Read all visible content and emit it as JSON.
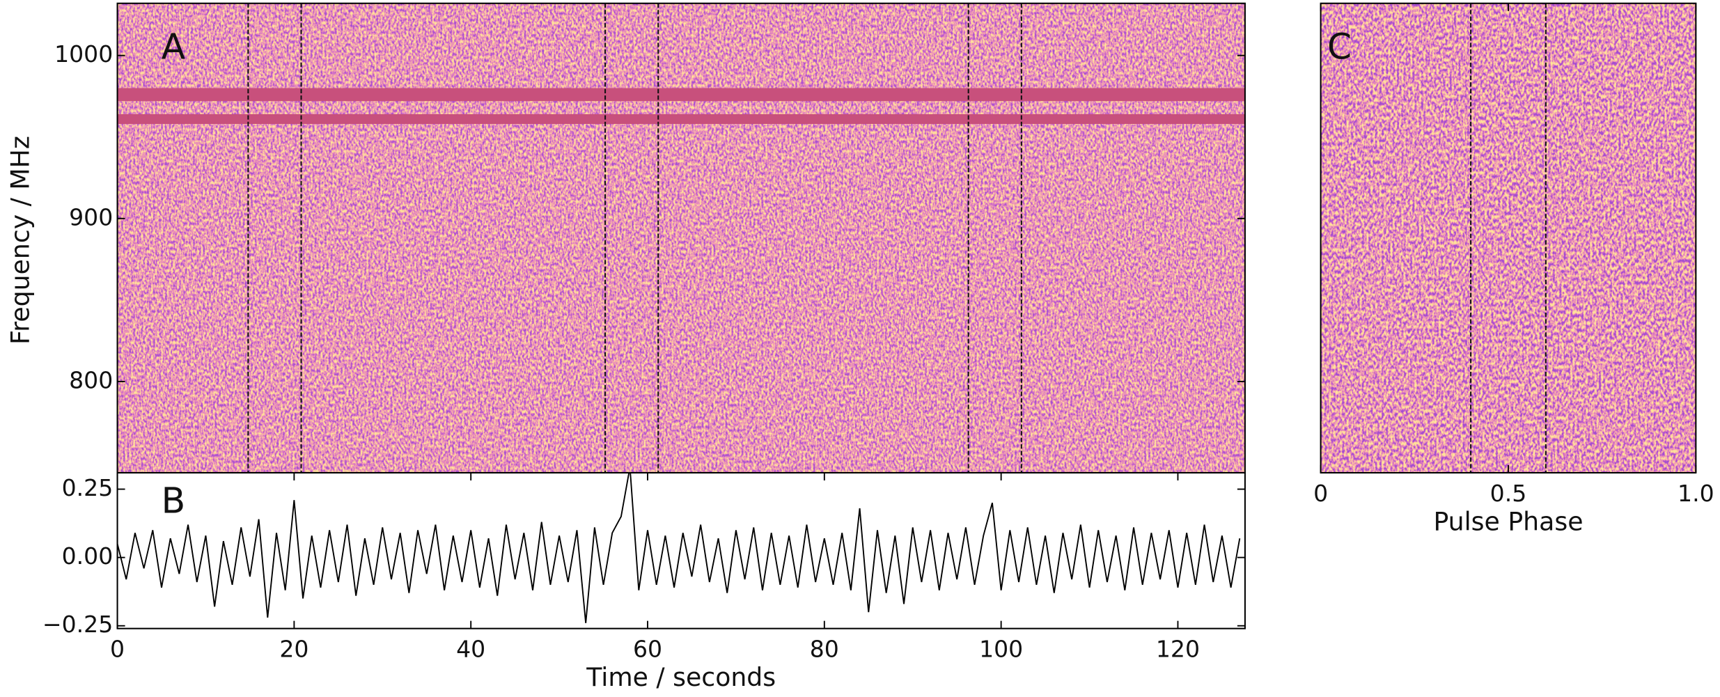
{
  "chart_data": [
    {
      "type": "heatmap",
      "panel": "A",
      "ylabel": "Frequency / MHz",
      "xlim": [
        0,
        127.6
      ],
      "ylim": [
        744,
        1032
      ],
      "yticks": [
        800,
        900,
        1000
      ],
      "markers": [
        14.8,
        20.8,
        55.2,
        61.2,
        96.3,
        102.3
      ],
      "flagged_bands": [
        [
          972,
          980
        ],
        [
          958,
          964
        ]
      ]
    },
    {
      "type": "line",
      "panel": "B",
      "xlabel": "Time / seconds",
      "color": "#000000",
      "xlim": [
        0,
        127.6
      ],
      "ylim": [
        -0.26,
        0.31
      ],
      "xticks": [
        0,
        20,
        40,
        60,
        80,
        100,
        120
      ],
      "yticks": [
        {
          "value": -0.25,
          "label": "−0.25"
        },
        {
          "value": 0,
          "label": "0.00"
        },
        {
          "value": 0.25,
          "label": "0.25"
        }
      ],
      "x": [
        0,
        1,
        2,
        3,
        4,
        5,
        6,
        7,
        8,
        9,
        10,
        11,
        12,
        13,
        14,
        15,
        16,
        17,
        18,
        19,
        20,
        21,
        22,
        23,
        24,
        25,
        26,
        27,
        28,
        29,
        30,
        31,
        32,
        33,
        34,
        35,
        36,
        37,
        38,
        39,
        40,
        41,
        42,
        43,
        44,
        45,
        46,
        47,
        48,
        49,
        50,
        51,
        52,
        53,
        54,
        55,
        56,
        57,
        58,
        59,
        60,
        61,
        62,
        63,
        64,
        65,
        66,
        67,
        68,
        69,
        70,
        71,
        72,
        73,
        74,
        75,
        76,
        77,
        78,
        79,
        80,
        81,
        82,
        83,
        84,
        85,
        86,
        87,
        88,
        89,
        90,
        91,
        92,
        93,
        94,
        95,
        96,
        97,
        98,
        99,
        100,
        101,
        102,
        103,
        104,
        105,
        106,
        107,
        108,
        109,
        110,
        111,
        112,
        113,
        114,
        115,
        116,
        117,
        118,
        119,
        120,
        121,
        122,
        123,
        124,
        125,
        126,
        127
      ],
      "values": [
        0.05,
        -0.08,
        0.09,
        -0.04,
        0.1,
        -0.11,
        0.07,
        -0.06,
        0.12,
        -0.09,
        0.08,
        -0.18,
        0.06,
        -0.1,
        0.11,
        -0.07,
        0.14,
        -0.22,
        0.09,
        -0.12,
        0.21,
        -0.15,
        0.08,
        -0.11,
        0.1,
        -0.09,
        0.12,
        -0.14,
        0.07,
        -0.1,
        0.11,
        -0.08,
        0.09,
        -0.13,
        0.1,
        -0.06,
        0.12,
        -0.12,
        0.08,
        -0.09,
        0.1,
        -0.11,
        0.07,
        -0.14,
        0.12,
        -0.08,
        0.09,
        -0.12,
        0.13,
        -0.1,
        0.08,
        -0.09,
        0.1,
        -0.24,
        0.11,
        -0.1,
        0.09,
        0.15,
        0.33,
        -0.12,
        0.1,
        -0.1,
        0.08,
        -0.11,
        0.09,
        -0.07,
        0.12,
        -0.09,
        0.07,
        -0.13,
        0.1,
        -0.08,
        0.11,
        -0.12,
        0.09,
        -0.1,
        0.08,
        -0.11,
        0.12,
        -0.09,
        0.07,
        -0.1,
        0.09,
        -0.12,
        0.18,
        -0.2,
        0.1,
        -0.13,
        0.08,
        -0.17,
        0.11,
        -0.09,
        0.1,
        -0.12,
        0.09,
        -0.08,
        0.11,
        -0.1,
        0.08,
        0.2,
        -0.12,
        0.1,
        -0.09,
        0.11,
        -0.1,
        0.08,
        -0.13,
        0.09,
        -0.08,
        0.12,
        -0.11,
        0.1,
        -0.09,
        0.08,
        -0.12,
        0.11,
        -0.1,
        0.09,
        -0.08,
        0.1,
        -0.11,
        0.09,
        -0.1,
        0.12,
        -0.09,
        0.08,
        -0.11,
        0.07
      ]
    },
    {
      "type": "heatmap",
      "panel": "C",
      "xlabel": "Pulse Phase",
      "xlim": [
        0,
        1
      ],
      "xticks": [
        0,
        {
          "value": 0.5,
          "label": "0.5"
        },
        {
          "value": 1,
          "label": "1.0"
        }
      ],
      "markers": [
        0.4,
        0.6
      ]
    }
  ]
}
